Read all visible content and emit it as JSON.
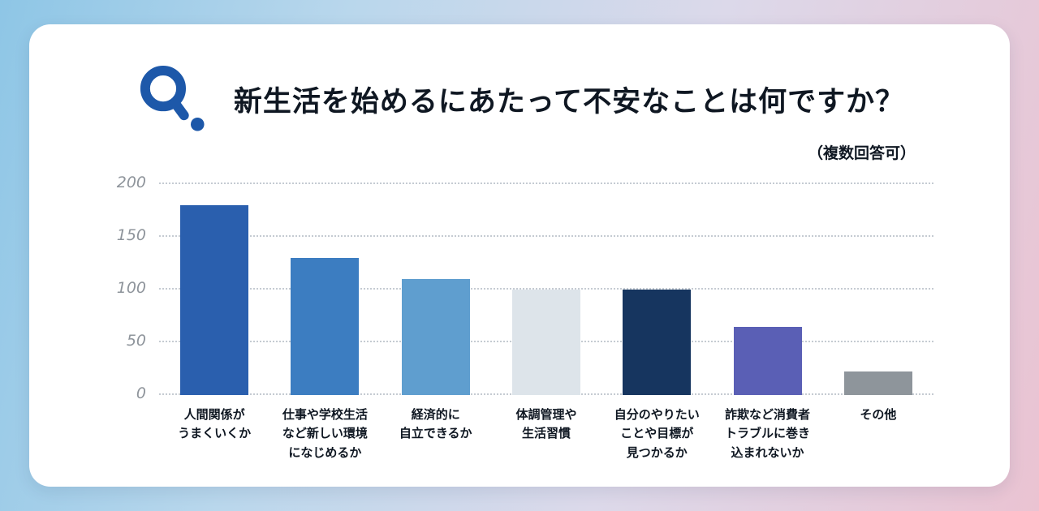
{
  "logo": {
    "name": "q-magnifier-logo",
    "color": "#1d58a9"
  },
  "chart_data": {
    "type": "bar",
    "title": "新生活を始めるにあたって不安なことは何ですか？",
    "subtitle": "（複数回答可）",
    "categories": [
      "人間関係が\nうまくいくか",
      "仕事や学校生活\nなど新しい環境\nになじめるか",
      "経済的に\n自立できるか",
      "体調管理や\n生活習慣",
      "自分のやりたい\nことや目標が\n見つかるか",
      "詐欺など消費者\nトラブルに巻き\n込まれないか",
      "その他"
    ],
    "values": [
      180,
      130,
      110,
      100,
      100,
      65,
      22
    ],
    "colors": [
      "#2a5fae",
      "#3c7dc1",
      "#5f9ecf",
      "#dde4ea",
      "#16355f",
      "#5a5fb5",
      "#8e959b"
    ],
    "ylim": [
      0,
      200
    ],
    "yticks": [
      200,
      150,
      100,
      50,
      0
    ],
    "xlabel": "",
    "ylabel": "",
    "grid": "dotted-horizontal",
    "legend_position": "none"
  }
}
